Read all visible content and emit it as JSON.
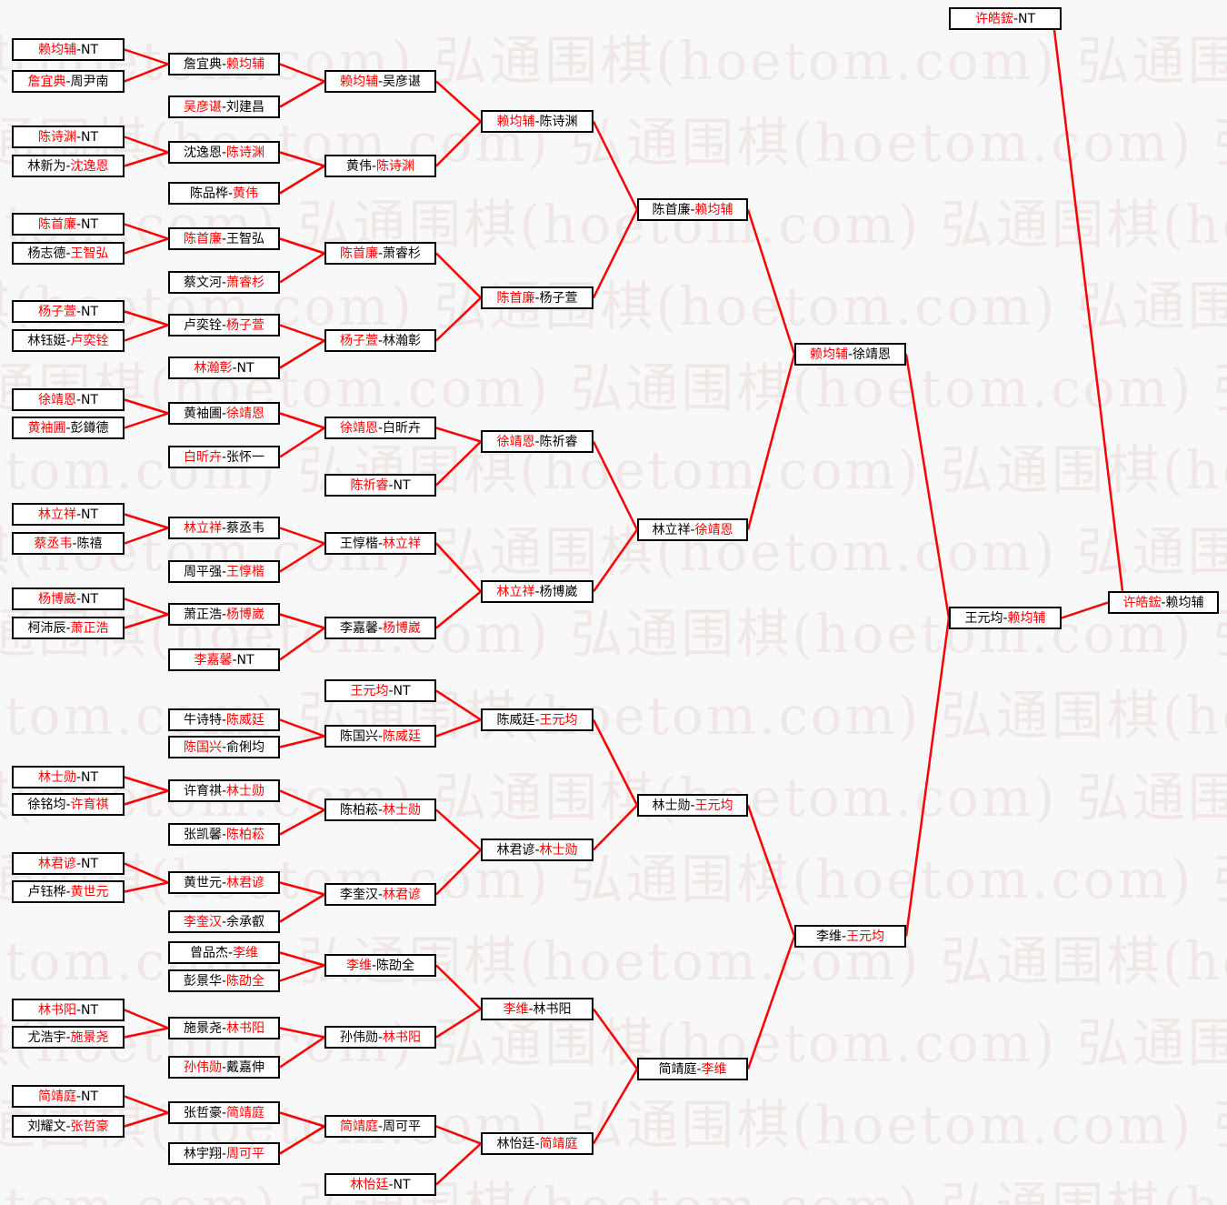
{
  "watermark": {
    "text": "弘通围棋(hoetom.com)",
    "color": "#f0e7e7"
  },
  "colors": {
    "page_bg": "#f9f8f8",
    "box_bg": "#ffffff",
    "box_border": "#000000",
    "winner_text": "#ff0000",
    "loser_text": "#000000",
    "line": "#ff0000"
  },
  "bracket": {
    "rounds": [
      {
        "name": "round-1-left",
        "matches": [
          {
            "p1": "赖均辅",
            "p2": "NT",
            "red": "p1"
          },
          {
            "p1": "詹宜典",
            "p2": "周尹南",
            "red": "p1"
          },
          {
            "p1": "陈诗渊",
            "p2": "NT",
            "red": "p1"
          },
          {
            "p1": "林新为",
            "p2": "沈逸恩",
            "red": "p2"
          },
          {
            "p1": "陈首廉",
            "p2": "NT",
            "red": "p1"
          },
          {
            "p1": "杨志德",
            "p2": "王智弘",
            "red": "p2"
          },
          {
            "p1": "杨子萱",
            "p2": "NT",
            "red": "p1"
          },
          {
            "p1": "林钰娗",
            "p2": "卢奕铨",
            "red": "p2"
          },
          {
            "p1": "徐靖恩",
            "p2": "NT",
            "red": "p1"
          },
          {
            "p1": "黄袖圃",
            "p2": "彭鐏德",
            "red": "p1"
          },
          {
            "p1": "林立祥",
            "p2": "NT",
            "red": "p1"
          },
          {
            "p1": "蔡丞韦",
            "p2": "陈禧",
            "red": "p1"
          },
          {
            "p1": "杨博崴",
            "p2": "NT",
            "red": "p1"
          },
          {
            "p1": "柯沛辰",
            "p2": "萧正浩",
            "red": "p2"
          },
          {
            "p1": "林士勋",
            "p2": "NT",
            "red": "p1"
          },
          {
            "p1": "徐铭均",
            "p2": "许育祺",
            "red": "p2"
          },
          {
            "p1": "林君谚",
            "p2": "NT",
            "red": "p1"
          },
          {
            "p1": "卢钰桦",
            "p2": "黄世元",
            "red": "p2"
          },
          {
            "p1": "林书阳",
            "p2": "NT",
            "red": "p1"
          },
          {
            "p1": "尤浩宇",
            "p2": "施景尧",
            "red": "p2"
          },
          {
            "p1": "简靖庭",
            "p2": "NT",
            "red": "p1"
          },
          {
            "p1": "刘耀文",
            "p2": "张哲豪",
            "red": "p2"
          }
        ]
      },
      {
        "name": "round-2",
        "matches": [
          {
            "p1": "詹宜典",
            "p2": "赖均辅",
            "red": "p2"
          },
          {
            "p1": "吴彦谌",
            "p2": "刘建昌",
            "red": "p1"
          },
          {
            "p1": "沈逸恩",
            "p2": "陈诗渊",
            "red": "p2"
          },
          {
            "p1": "陈品桦",
            "p2": "黄伟",
            "red": "p2"
          },
          {
            "p1": "陈首廉",
            "p2": "王智弘",
            "red": "p1"
          },
          {
            "p1": "蔡文河",
            "p2": "萧睿杉",
            "red": "p2"
          },
          {
            "p1": "卢奕铨",
            "p2": "杨子萱",
            "red": "p2"
          },
          {
            "p1": "林瀚彰",
            "p2": "NT",
            "red": "p1"
          },
          {
            "p1": "黄袖圃",
            "p2": "徐靖恩",
            "red": "p2"
          },
          {
            "p1": "白昕卉",
            "p2": "张怀一",
            "red": "p1"
          },
          {
            "p1": "林立祥",
            "p2": "蔡丞韦",
            "red": "p1"
          },
          {
            "p1": "周平强",
            "p2": "王惇楷",
            "red": "p2"
          },
          {
            "p1": "萧正浩",
            "p2": "杨博崴",
            "red": "p2"
          },
          {
            "p1": "李嘉馨",
            "p2": "NT",
            "red": "p1"
          },
          {
            "p1": "牛诗特",
            "p2": "陈威廷",
            "red": "p2"
          },
          {
            "p1": "陈国兴",
            "p2": "俞俐均",
            "red": "p1"
          },
          {
            "p1": "许育祺",
            "p2": "林士勋",
            "red": "p2"
          },
          {
            "p1": "张凯馨",
            "p2": "陈柏菘",
            "red": "p2"
          },
          {
            "p1": "黄世元",
            "p2": "林君谚",
            "red": "p2"
          },
          {
            "p1": "李奎汉",
            "p2": "余承叡",
            "red": "p1"
          },
          {
            "p1": "曾品杰",
            "p2": "李维",
            "red": "p2"
          },
          {
            "p1": "彭景华",
            "p2": "陈劭全",
            "red": "p2"
          },
          {
            "p1": "施景尧",
            "p2": "林书阳",
            "red": "p2"
          },
          {
            "p1": "孙伟勋",
            "p2": "戴嘉伸",
            "red": "p1"
          },
          {
            "p1": "张哲豪",
            "p2": "简靖庭",
            "red": "p2"
          },
          {
            "p1": "林宇翔",
            "p2": "周可平",
            "red": "p2"
          }
        ]
      },
      {
        "name": "round-3",
        "matches": [
          {
            "p1": "赖均辅",
            "p2": "吴彦谌",
            "red": "p1"
          },
          {
            "p1": "黄伟",
            "p2": "陈诗渊",
            "red": "p2"
          },
          {
            "p1": "陈首廉",
            "p2": "萧睿杉",
            "red": "p1"
          },
          {
            "p1": "杨子萱",
            "p2": "林瀚彰",
            "red": "p1"
          },
          {
            "p1": "徐靖恩",
            "p2": "白昕卉",
            "red": "p1"
          },
          {
            "p1": "陈祈睿",
            "p2": "NT",
            "red": "p1"
          },
          {
            "p1": "王惇楷",
            "p2": "林立祥",
            "red": "p2"
          },
          {
            "p1": "李嘉馨",
            "p2": "杨博崴",
            "red": "p2"
          },
          {
            "p1": "王元均",
            "p2": "NT",
            "red": "p1"
          },
          {
            "p1": "陈国兴",
            "p2": "陈威廷",
            "red": "p2"
          },
          {
            "p1": "陈柏菘",
            "p2": "林士勋",
            "red": "p2"
          },
          {
            "p1": "李奎汉",
            "p2": "林君谚",
            "red": "p2"
          },
          {
            "p1": "李维",
            "p2": "陈劭全",
            "red": "p1"
          },
          {
            "p1": "孙伟勋",
            "p2": "林书阳",
            "red": "p2"
          },
          {
            "p1": "简靖庭",
            "p2": "周可平",
            "red": "p1"
          },
          {
            "p1": "林怡廷",
            "p2": "NT",
            "red": "p1"
          }
        ]
      },
      {
        "name": "round-4",
        "matches": [
          {
            "p1": "赖均辅",
            "p2": "陈诗渊",
            "red": "p1"
          },
          {
            "p1": "陈首廉",
            "p2": "杨子萱",
            "red": "p1"
          },
          {
            "p1": "徐靖恩",
            "p2": "陈祈睿",
            "red": "p1"
          },
          {
            "p1": "林立祥",
            "p2": "杨博崴",
            "red": "p1"
          },
          {
            "p1": "陈威廷",
            "p2": "王元均",
            "red": "p2"
          },
          {
            "p1": "林君谚",
            "p2": "林士勋",
            "red": "p2"
          },
          {
            "p1": "李维",
            "p2": "林书阳",
            "red": "p1"
          },
          {
            "p1": "林怡廷",
            "p2": "简靖庭",
            "red": "p2"
          }
        ]
      },
      {
        "name": "round-5",
        "matches": [
          {
            "p1": "陈首廉",
            "p2": "赖均辅",
            "red": "p2"
          },
          {
            "p1": "林立祥",
            "p2": "徐靖恩",
            "red": "p2"
          },
          {
            "p1": "林士勋",
            "p2": "王元均",
            "red": "p2"
          },
          {
            "p1": "简靖庭",
            "p2": "李维",
            "red": "p2"
          }
        ]
      },
      {
        "name": "quarter-semi",
        "matches": [
          {
            "p1": "赖均辅",
            "p2": "徐靖恩",
            "red": "p1"
          },
          {
            "p1": "李维",
            "p2": "王元均",
            "red": "p2"
          }
        ]
      },
      {
        "name": "semi",
        "matches": [
          {
            "p1": "许皓鋐",
            "p2": "NT",
            "red": "p1"
          },
          {
            "p1": "王元均",
            "p2": "赖均辅",
            "red": "p2"
          }
        ]
      },
      {
        "name": "final",
        "matches": [
          {
            "p1": "许皓鋐",
            "p2": "赖均辅",
            "red": "p1"
          }
        ]
      }
    ]
  }
}
